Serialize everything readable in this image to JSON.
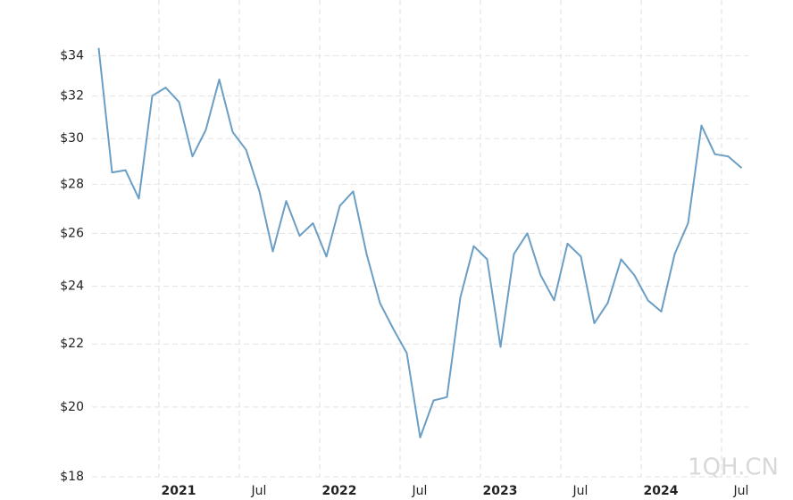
{
  "chart_data": {
    "type": "line",
    "log_scale": true,
    "grid": true,
    "watermark": "1QH.CN",
    "x": [
      "2020-08",
      "2020-09",
      "2020-10",
      "2020-11",
      "2020-12",
      "2021-01",
      "2021-02",
      "2021-03",
      "2021-04",
      "2021-05",
      "2021-06",
      "2021-07",
      "2021-08",
      "2021-09",
      "2021-10",
      "2021-11",
      "2021-12",
      "2022-01",
      "2022-02",
      "2022-03",
      "2022-04",
      "2022-05",
      "2022-06",
      "2022-07",
      "2022-08",
      "2022-09",
      "2022-10",
      "2022-11",
      "2022-12",
      "2023-01",
      "2023-02",
      "2023-03",
      "2023-04",
      "2023-05",
      "2023-06",
      "2023-07",
      "2023-08",
      "2023-09",
      "2023-10",
      "2023-11",
      "2023-12",
      "2024-01",
      "2024-02",
      "2024-03",
      "2024-04",
      "2024-05",
      "2024-06",
      "2024-07",
      "2024-08"
    ],
    "series": [
      {
        "color": "#6a9ec5",
        "values": [
          34.4,
          28.5,
          28.6,
          27.4,
          32.0,
          32.4,
          31.7,
          29.2,
          30.4,
          32.8,
          30.3,
          29.5,
          27.7,
          25.3,
          27.3,
          25.9,
          26.4,
          25.1,
          27.1,
          27.7,
          25.2,
          23.4,
          22.5,
          21.7,
          19.1,
          20.2,
          20.3,
          23.6,
          25.5,
          25.0,
          21.9,
          25.2,
          26.0,
          24.4,
          23.5,
          25.6,
          25.1,
          22.7,
          23.4,
          25.0,
          24.4,
          23.5,
          23.1,
          25.2,
          26.4,
          30.6,
          29.3,
          29.2,
          28.7
        ]
      }
    ],
    "xlim": [
      "2020-08",
      "2024-09"
    ],
    "xticks": [
      {
        "value": "2021-01",
        "label": "2021"
      },
      {
        "value": "2021-07",
        "label": "Jul"
      },
      {
        "value": "2022-01",
        "label": "2022"
      },
      {
        "value": "2022-07",
        "label": "Jul"
      },
      {
        "value": "2023-01",
        "label": "2023"
      },
      {
        "value": "2023-07",
        "label": "Jul"
      },
      {
        "value": "2024-01",
        "label": "2024"
      },
      {
        "value": "2024-07",
        "label": "Jul"
      }
    ],
    "ylim": [
      18,
      36
    ],
    "yticks": [
      {
        "value": 18,
        "label": "$18"
      },
      {
        "value": 20,
        "label": "$20"
      },
      {
        "value": 22,
        "label": "$22"
      },
      {
        "value": 24,
        "label": "$24"
      },
      {
        "value": 26,
        "label": "$26"
      },
      {
        "value": 28,
        "label": "$28"
      },
      {
        "value": 30,
        "label": "$30"
      },
      {
        "value": 32,
        "label": "$32"
      },
      {
        "value": 34,
        "label": "$34"
      }
    ]
  }
}
